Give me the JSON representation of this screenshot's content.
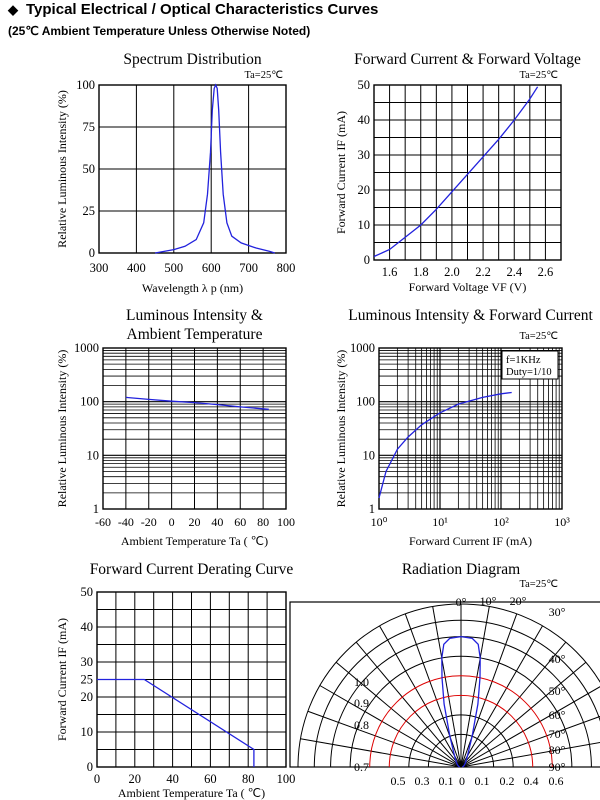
{
  "header": {
    "title": "Typical Electrical / Optical Characteristics Curves",
    "subtitle": "(25℃ Ambient Temperature Unless Otherwise Noted)"
  },
  "colors": {
    "curve": "#2222dd",
    "radiation_red": "#dd0000",
    "grid": "#000000"
  },
  "chart_data": [
    {
      "id": "spectrum",
      "type": "line",
      "title": "Spectrum Distribution",
      "condition": "Ta=25℃",
      "xlabel": "Wavelength  λ p (nm)",
      "ylabel": "Relative Luminous Intensity (%)",
      "xlim": [
        300,
        800
      ],
      "ylim": [
        0,
        100
      ],
      "xticks": [
        "300",
        "400",
        "500",
        "600",
        "700",
        "800"
      ],
      "yticks": [
        "0",
        "25",
        "50",
        "75",
        "100"
      ],
      "grid": true,
      "series": [
        {
          "x": [
            450,
            500,
            530,
            560,
            580,
            590,
            598,
            603,
            608,
            612,
            616,
            620,
            625,
            632,
            642,
            655,
            680,
            720,
            755,
            770
          ],
          "y": [
            0,
            2,
            4,
            8,
            18,
            35,
            60,
            85,
            98,
            100,
            98,
            85,
            60,
            35,
            18,
            10,
            6,
            3,
            1,
            0
          ]
        }
      ]
    },
    {
      "id": "forward_iv",
      "type": "line",
      "title": "Forward Current & Forward Voltage",
      "condition": "Ta=25℃",
      "xlabel": "Forward Voltage  VF (V)",
      "ylabel": "Forward Current IF (mA)",
      "xlim": [
        1.5,
        2.7
      ],
      "ylim": [
        0,
        50
      ],
      "xticks": [
        "1.6",
        "1.8",
        "2.0",
        "2.2",
        "2.4",
        "2.6"
      ],
      "yticks": [
        "0",
        "10",
        "20",
        "30",
        "40",
        "50"
      ],
      "grid": true,
      "series": [
        {
          "x": [
            1.5,
            1.6,
            1.7,
            1.8,
            1.9,
            2.0,
            2.1,
            2.2,
            2.3,
            2.4,
            2.5,
            2.55
          ],
          "y": [
            1,
            3,
            6.5,
            10,
            14.5,
            19.5,
            24.5,
            29.5,
            34.5,
            40,
            46,
            49.5
          ]
        }
      ]
    },
    {
      "id": "intensity_temp",
      "type": "line",
      "title": "Luminous Intensity & Ambient Temperature",
      "title_lines": [
        "Luminous Intensity &",
        "Ambient Temperature"
      ],
      "xlabel": "Ambient Temperature Ta ( ℃)",
      "ylabel": "Relative Luminous Intensity (%)",
      "xlim": [
        -60,
        100
      ],
      "ylim": [
        1,
        1000
      ],
      "yscale": "log",
      "xticks": [
        "-60",
        "-40",
        "-20",
        "0",
        "20",
        "40",
        "60",
        "80",
        "100"
      ],
      "yticks": [
        "1",
        "10",
        "100",
        "1000"
      ],
      "grid": true,
      "series": [
        {
          "x": [
            -40,
            -20,
            0,
            20,
            40,
            60,
            85
          ],
          "y": [
            120,
            110,
            102,
            96,
            88,
            80,
            72
          ]
        }
      ]
    },
    {
      "id": "intensity_current",
      "type": "line",
      "title": "Luminous Intensity & Forward Current",
      "condition": "Ta=25℃",
      "legend_lines": [
        "f=1KHz",
        "Duty=1/10"
      ],
      "xlabel": "Forward Current IF (mA)",
      "ylabel": "Relative Luminous Intensity (%)",
      "xscale": "log",
      "yscale": "log",
      "xlim": [
        1,
        1000
      ],
      "ylim": [
        1,
        1000
      ],
      "xticks": [
        "10⁰",
        "10¹",
        "10²",
        "10³"
      ],
      "yticks": [
        "1",
        "10",
        "100",
        "1000"
      ],
      "grid": true,
      "series": [
        {
          "x": [
            1,
            1.3,
            2,
            3,
            5,
            10,
            20,
            50,
            100,
            150
          ],
          "y": [
            1.6,
            5,
            13,
            22,
            37,
            62,
            90,
            120,
            140,
            148
          ]
        }
      ]
    },
    {
      "id": "derating",
      "type": "line",
      "title": "Forward Current Derating Curve",
      "xlabel": "Ambient Temperature Ta ( ℃)",
      "ylabel": "Forward Current IF (mA)",
      "xlim": [
        0,
        100
      ],
      "ylim": [
        0,
        50
      ],
      "xticks": [
        "0",
        "20",
        "40",
        "60",
        "80",
        "100"
      ],
      "yticks": [
        "0",
        "10",
        "20",
        "25",
        "30",
        "40",
        "50"
      ],
      "grid": true,
      "series": [
        {
          "x": [
            0,
            25,
            83,
            83
          ],
          "y": [
            25,
            25,
            5,
            0
          ]
        }
      ]
    },
    {
      "id": "radiation",
      "type": "polar",
      "title": "Radiation Diagram",
      "condition": "Ta=25℃",
      "angle_labels": [
        "0°",
        "10°",
        "20°",
        "30°",
        "40°",
        "50°",
        "60°",
        "70°",
        "80°",
        "90°"
      ],
      "radial_labels": [
        "1.0",
        "0.9",
        "0.8",
        "0.7"
      ],
      "bottom_labels": [
        "0.5",
        "0.3",
        "0.1",
        "0",
        "0.1",
        "0.2",
        "0.4",
        "0.6"
      ],
      "series": [
        {
          "name": "",
          "angles": [
            0,
            5,
            8,
            10,
            12,
            15,
            20,
            30,
            45,
            60,
            75,
            90
          ],
          "values": [
            1.0,
            0.99,
            0.95,
            0.85,
            0.7,
            0.5,
            0.25,
            0.1,
            0.05,
            0.03,
            0.02,
            0.01
          ]
        }
      ]
    }
  ]
}
